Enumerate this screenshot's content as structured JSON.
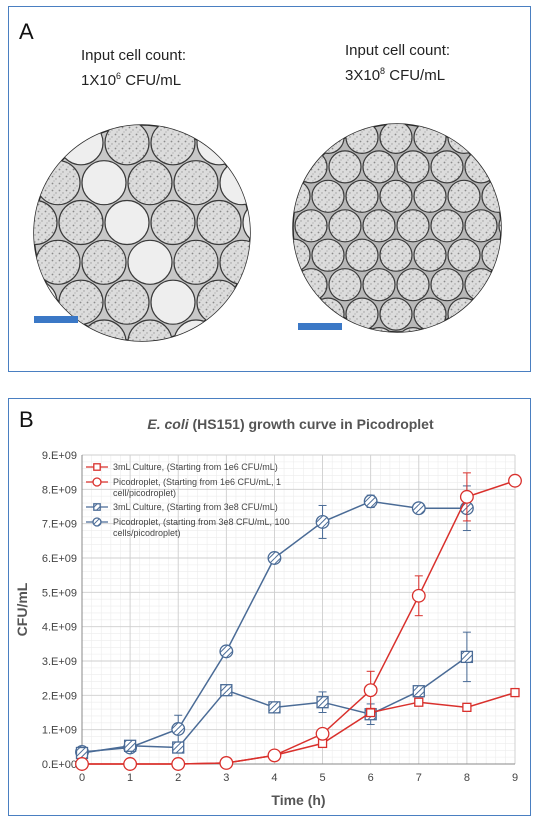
{
  "panel_a": {
    "letter": "A",
    "left_caption": {
      "line1": "Input cell count:",
      "line2_prefix": "1X10",
      "line2_sup": "6",
      "line2_suffix": " CFU/mL"
    },
    "right_caption": {
      "line1": "Input cell count:",
      "line2_prefix": "3X10",
      "line2_sup": "8",
      "line2_suffix": " CFU/mL"
    },
    "scale_bar_color": "#3b78c6"
  },
  "panel_b": {
    "letter": "B"
  },
  "chart_data": {
    "type": "line",
    "title_italic": "E. coli",
    "title_rest": " (HS151) growth curve in Picodroplet",
    "xlabel": "Time (h)",
    "ylabel": "CFU/mL",
    "xlim": [
      0,
      9
    ],
    "ylim": [
      0,
      9000000000
    ],
    "x_ticks": [
      "0",
      "1",
      "2",
      "3",
      "4",
      "5",
      "6",
      "7",
      "8",
      "9"
    ],
    "y_ticks": [
      "0.E+00",
      "1.E+09",
      "2.E+09",
      "3.E+09",
      "4.E+09",
      "5.E+09",
      "6.E+09",
      "7.E+09",
      "8.E+09",
      "9.E+09"
    ],
    "grid": true,
    "legend_position": "top-left",
    "series": [
      {
        "name": "3mL Culture, (Starting from 1e6 CFU/mL)",
        "color": "#d9302c",
        "marker": "square-open",
        "x": [
          0,
          1,
          2,
          3,
          4,
          5,
          6,
          7,
          8,
          9
        ],
        "y": [
          0,
          0,
          0,
          30000000,
          250000000,
          600000000,
          1500000000,
          1800000000,
          1650000000,
          2080000000
        ],
        "err": [
          0,
          0,
          0,
          0,
          0,
          0,
          0,
          0,
          0,
          0
        ]
      },
      {
        "name": "Picodroplet, (Starting from 1e6 CFU/mL, 1 cell/picodroplet)",
        "color": "#d9302c",
        "marker": "circle-open",
        "x": [
          0,
          1,
          2,
          3,
          4,
          5,
          6,
          7,
          8,
          9
        ],
        "y": [
          0,
          0,
          0,
          30000000,
          250000000,
          880000000,
          2150000000,
          4900000000,
          7780000000,
          8250000000
        ],
        "err": [
          0,
          0,
          0,
          0,
          0,
          0,
          550000000,
          580000000,
          700000000,
          0
        ]
      },
      {
        "name": "3mL Culture, (Starting from 3e8 CFU/mL)",
        "color": "#4a6b96",
        "marker": "square-hatched",
        "x": [
          0,
          1,
          2,
          3,
          4,
          5,
          6,
          7,
          8
        ],
        "y": [
          320000000,
          530000000,
          480000000,
          2150000000,
          1650000000,
          1800000000,
          1450000000,
          2120000000,
          3120000000
        ],
        "err": [
          0,
          0,
          0,
          0,
          0,
          300000000,
          300000000,
          0,
          720000000
        ]
      },
      {
        "name": "Picodroplet, (starting from 3e8 CFU/mL, 100 cells/picodroplet)",
        "color": "#4a6b96",
        "marker": "circle-hatched",
        "x": [
          0,
          1,
          2,
          3,
          4,
          5,
          6,
          7,
          8
        ],
        "y": [
          350000000,
          480000000,
          1020000000,
          3280000000,
          6000000000,
          7050000000,
          7650000000,
          7450000000,
          7450000000
        ],
        "err": [
          0,
          0,
          400000000,
          0,
          0,
          480000000,
          180000000,
          0,
          650000000
        ]
      }
    ]
  }
}
